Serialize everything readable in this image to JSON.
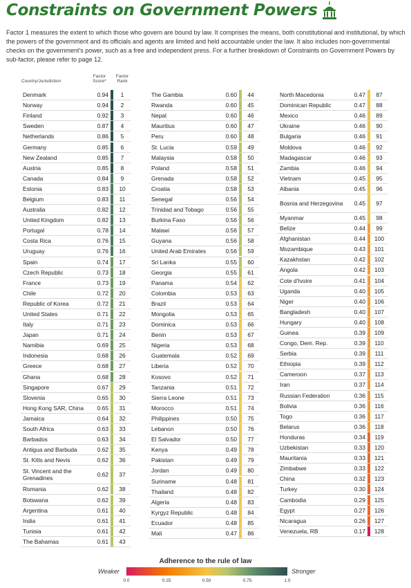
{
  "title": "Constraints on Government Powers",
  "intro": "Factor 1 measures the extent to which those who govern are bound by law. It comprises the means, both constitutional and institutional, by which the powers of the government and its officials and agents are limited and held accountable under the law. It also includes non-governmental checks on the government's power, such as a free and independent press. For a further breakdown of Constraints on Government Powers by sub-factor, please refer to page 12.",
  "headers": {
    "country": "Country/Jurisdiction",
    "score": "Factor Score*",
    "rank": "Factor Rank"
  },
  "colors": {
    "c1": "#2f4f4f",
    "c2": "#4e7a5e",
    "c3": "#6f9a5f",
    "c4": "#b7c465",
    "c5": "#f2c94c",
    "c6": "#f4a03a",
    "c7": "#ec6a2c",
    "c8": "#d81b60"
  },
  "columns": [
    [
      {
        "n": "Denmark",
        "s": "0.94",
        "r": "1"
      },
      {
        "n": "Norway",
        "s": "0.94",
        "r": "2"
      },
      {
        "n": "Finland",
        "s": "0.92",
        "r": "3"
      },
      {
        "n": "Sweden",
        "s": "0.87",
        "r": "4"
      },
      {
        "n": "Netherlands",
        "s": "0.86",
        "r": "5"
      },
      {
        "n": "Germany",
        "s": "0.85",
        "r": "6"
      },
      {
        "n": "New Zealand",
        "s": "0.85",
        "r": "7"
      },
      {
        "n": "Austria",
        "s": "0.85",
        "r": "8"
      },
      {
        "n": "Canada",
        "s": "0.84",
        "r": "9"
      },
      {
        "n": "Estonia",
        "s": "0.83",
        "r": "10"
      },
      {
        "n": "Belgium",
        "s": "0.83",
        "r": "11"
      },
      {
        "n": "Australia",
        "s": "0.82",
        "r": "12"
      },
      {
        "n": "United Kingdom",
        "s": "0.82",
        "r": "13"
      },
      {
        "n": "Portugal",
        "s": "0.78",
        "r": "14"
      },
      {
        "n": "Costa Rica",
        "s": "0.76",
        "r": "15"
      },
      {
        "n": "Uruguay",
        "s": "0.76",
        "r": "16"
      },
      {
        "n": "Spain",
        "s": "0.74",
        "r": "17"
      },
      {
        "n": "Czech Republic",
        "s": "0.73",
        "r": "18"
      },
      {
        "n": "France",
        "s": "0.73",
        "r": "19"
      },
      {
        "n": "Chile",
        "s": "0.72",
        "r": "20"
      },
      {
        "n": "Republic of Korea",
        "s": "0.72",
        "r": "21"
      },
      {
        "n": "United States",
        "s": "0.71",
        "r": "22"
      },
      {
        "n": "Italy",
        "s": "0.71",
        "r": "23"
      },
      {
        "n": "Japan",
        "s": "0.71",
        "r": "24"
      },
      {
        "n": "Namibia",
        "s": "0.69",
        "r": "25"
      },
      {
        "n": "Indonesia",
        "s": "0.68",
        "r": "26"
      },
      {
        "n": "Greece",
        "s": "0.68",
        "r": "27"
      },
      {
        "n": "Ghana",
        "s": "0.68",
        "r": "28"
      },
      {
        "n": "Singapore",
        "s": "0.67",
        "r": "29"
      },
      {
        "n": "Slovenia",
        "s": "0.65",
        "r": "30"
      },
      {
        "n": "Hong Kong SAR, China",
        "s": "0.65",
        "r": "31"
      },
      {
        "n": "Jamaica",
        "s": "0.64",
        "r": "32"
      },
      {
        "n": "South Africa",
        "s": "0.63",
        "r": "33"
      },
      {
        "n": "Barbados",
        "s": "0.63",
        "r": "34"
      },
      {
        "n": "Antigua and Barbuda",
        "s": "0.62",
        "r": "35"
      },
      {
        "n": "St. Kitts and Nevis",
        "s": "0.62",
        "r": "36"
      },
      {
        "n": "St. Vincent and the Grenadines",
        "s": "0.62",
        "r": "37",
        "tall": true
      },
      {
        "n": "Romania",
        "s": "0.62",
        "r": "38"
      },
      {
        "n": "Botswana",
        "s": "0.62",
        "r": "39"
      },
      {
        "n": "Argentina",
        "s": "0.61",
        "r": "40"
      },
      {
        "n": "India",
        "s": "0.61",
        "r": "41"
      },
      {
        "n": "Tunisia",
        "s": "0.61",
        "r": "42"
      },
      {
        "n": "The Bahamas",
        "s": "0.61",
        "r": "43"
      }
    ],
    [
      {
        "n": "The Gambia",
        "s": "0.60",
        "r": "44"
      },
      {
        "n": "Rwanda",
        "s": "0.60",
        "r": "45"
      },
      {
        "n": "Nepal",
        "s": "0.60",
        "r": "46"
      },
      {
        "n": "Mauritius",
        "s": "0.60",
        "r": "47"
      },
      {
        "n": "Peru",
        "s": "0.60",
        "r": "48"
      },
      {
        "n": "St. Lucia",
        "s": "0.59",
        "r": "49"
      },
      {
        "n": "Malaysia",
        "s": "0.58",
        "r": "50"
      },
      {
        "n": "Poland",
        "s": "0.58",
        "r": "51"
      },
      {
        "n": "Grenada",
        "s": "0.58",
        "r": "52"
      },
      {
        "n": "Croatia",
        "s": "0.58",
        "r": "53"
      },
      {
        "n": "Senegal",
        "s": "0.56",
        "r": "54"
      },
      {
        "n": "Trinidad and Tobago",
        "s": "0.56",
        "r": "55"
      },
      {
        "n": "Burkina Faso",
        "s": "0.56",
        "r": "56"
      },
      {
        "n": "Malawi",
        "s": "0.56",
        "r": "57"
      },
      {
        "n": "Guyana",
        "s": "0.56",
        "r": "58"
      },
      {
        "n": "United Arab Emirates",
        "s": "0.56",
        "r": "59"
      },
      {
        "n": "Sri Lanka",
        "s": "0.55",
        "r": "60"
      },
      {
        "n": "Georgia",
        "s": "0.55",
        "r": "61"
      },
      {
        "n": "Panama",
        "s": "0.54",
        "r": "62"
      },
      {
        "n": "Colombia",
        "s": "0.53",
        "r": "63"
      },
      {
        "n": "Brazil",
        "s": "0.53",
        "r": "64"
      },
      {
        "n": "Mongolia",
        "s": "0.53",
        "r": "65"
      },
      {
        "n": "Dominica",
        "s": "0.53",
        "r": "66"
      },
      {
        "n": "Benin",
        "s": "0.53",
        "r": "67"
      },
      {
        "n": "Nigeria",
        "s": "0.53",
        "r": "68"
      },
      {
        "n": "Guatemala",
        "s": "0.52",
        "r": "69"
      },
      {
        "n": "Liberia",
        "s": "0.52",
        "r": "70"
      },
      {
        "n": "Kosovo",
        "s": "0.52",
        "r": "71"
      },
      {
        "n": "Tanzania",
        "s": "0.51",
        "r": "72"
      },
      {
        "n": "Sierra Leone",
        "s": "0.51",
        "r": "73"
      },
      {
        "n": "Morocco",
        "s": "0.51",
        "r": "74"
      },
      {
        "n": "Philippines",
        "s": "0.50",
        "r": "75"
      },
      {
        "n": "Lebanon",
        "s": "0.50",
        "r": "76"
      },
      {
        "n": "El Salvador",
        "s": "0.50",
        "r": "77"
      },
      {
        "n": "Kenya",
        "s": "0.49",
        "r": "78"
      },
      {
        "n": "Pakistan",
        "s": "0.49",
        "r": "79"
      },
      {
        "n": "Jordan",
        "s": "0.49",
        "r": "80"
      },
      {
        "n": "Suriname",
        "s": "0.48",
        "r": "81"
      },
      {
        "n": "Thailand",
        "s": "0.48",
        "r": "82"
      },
      {
        "n": "Algeria",
        "s": "0.48",
        "r": "83"
      },
      {
        "n": "Kyrgyz Republic",
        "s": "0.48",
        "r": "84"
      },
      {
        "n": "Ecuador",
        "s": "0.48",
        "r": "85"
      },
      {
        "n": "Mali",
        "s": "0.47",
        "r": "86"
      }
    ],
    [
      {
        "n": "North Macedonia",
        "s": "0.47",
        "r": "87"
      },
      {
        "n": "Dominican Republic",
        "s": "0.47",
        "r": "88"
      },
      {
        "n": "Mexico",
        "s": "0.46",
        "r": "89"
      },
      {
        "n": "Ukraine",
        "s": "0.46",
        "r": "90"
      },
      {
        "n": "Bulgaria",
        "s": "0.46",
        "r": "91"
      },
      {
        "n": "Moldova",
        "s": "0.46",
        "r": "92"
      },
      {
        "n": "Madagascar",
        "s": "0.46",
        "r": "93"
      },
      {
        "n": "Zambia",
        "s": "0.46",
        "r": "94"
      },
      {
        "n": "Vietnam",
        "s": "0.45",
        "r": "95"
      },
      {
        "n": "Albania",
        "s": "0.45",
        "r": "96"
      },
      {
        "n": "Bosnia and Herzegovina",
        "s": "0.45",
        "r": "97",
        "tall": true
      },
      {
        "n": "Myanmar",
        "s": "0.45",
        "r": "98"
      },
      {
        "n": "Belize",
        "s": "0.44",
        "r": "99"
      },
      {
        "n": "Afghanistan",
        "s": "0.44",
        "r": "100"
      },
      {
        "n": "Mozambique",
        "s": "0.43",
        "r": "101"
      },
      {
        "n": "Kazakhstan",
        "s": "0.42",
        "r": "102"
      },
      {
        "n": "Angola",
        "s": "0.42",
        "r": "103"
      },
      {
        "n": "Cote d'Ivoire",
        "s": "0.41",
        "r": "104"
      },
      {
        "n": "Uganda",
        "s": "0.40",
        "r": "105"
      },
      {
        "n": "Niger",
        "s": "0.40",
        "r": "106"
      },
      {
        "n": "Bangladesh",
        "s": "0.40",
        "r": "107"
      },
      {
        "n": "Hungary",
        "s": "0.40",
        "r": "108"
      },
      {
        "n": "Guinea",
        "s": "0.39",
        "r": "109"
      },
      {
        "n": "Congo, Dem. Rep.",
        "s": "0.39",
        "r": "110"
      },
      {
        "n": "Serbia",
        "s": "0.39",
        "r": "111"
      },
      {
        "n": "Ethiopia",
        "s": "0.39",
        "r": "112"
      },
      {
        "n": "Cameroon",
        "s": "0.37",
        "r": "113"
      },
      {
        "n": "Iran",
        "s": "0.37",
        "r": "114"
      },
      {
        "n": "Russian Federation",
        "s": "0.36",
        "r": "115"
      },
      {
        "n": "Bolivia",
        "s": "0.36",
        "r": "116"
      },
      {
        "n": "Togo",
        "s": "0.36",
        "r": "117"
      },
      {
        "n": "Belarus",
        "s": "0.36",
        "r": "118"
      },
      {
        "n": "Honduras",
        "s": "0.34",
        "r": "119"
      },
      {
        "n": "Uzbekistan",
        "s": "0.33",
        "r": "120"
      },
      {
        "n": "Mauritania",
        "s": "0.33",
        "r": "121"
      },
      {
        "n": "Zimbabwe",
        "s": "0.33",
        "r": "122"
      },
      {
        "n": "China",
        "s": "0.32",
        "r": "123"
      },
      {
        "n": "Turkey",
        "s": "0.30",
        "r": "124"
      },
      {
        "n": "Cambodia",
        "s": "0.29",
        "r": "125"
      },
      {
        "n": "Egypt",
        "s": "0.27",
        "r": "126"
      },
      {
        "n": "Nicaragua",
        "s": "0.26",
        "r": "127"
      },
      {
        "n": "Venezuela, RB",
        "s": "0.17",
        "r": "128"
      }
    ]
  ],
  "legend": {
    "title": "Adherence to the rule of law",
    "weaker": "Weaker",
    "stronger": "Stronger",
    "ticks": [
      "0.0",
      "0.25",
      "0.50",
      "0.75",
      "1.0"
    ]
  }
}
